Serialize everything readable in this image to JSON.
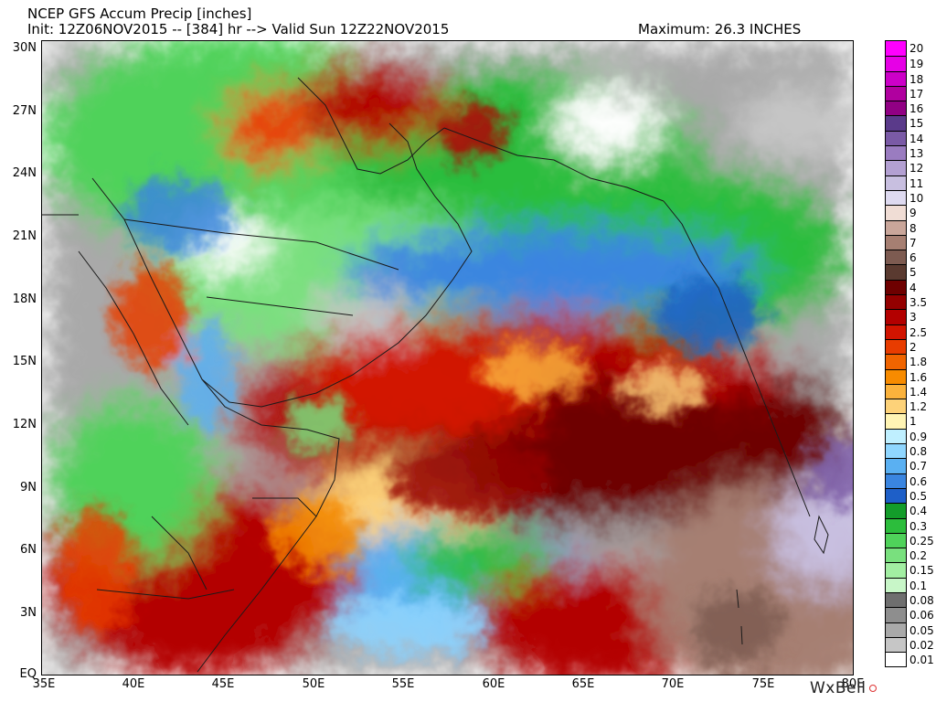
{
  "header": {
    "title": "NCEP GFS Accum Precip [inches]",
    "init_line": "Init: 12Z06NOV2015 -- [384] hr --> Valid Sun 12Z22NOV2015",
    "maximum": "Maximum: 26.3 INCHES"
  },
  "axes": {
    "lat_labels": [
      "30N",
      "27N",
      "24N",
      "21N",
      "18N",
      "15N",
      "12N",
      "9N",
      "6N",
      "3N",
      "EQ"
    ],
    "lon_labels": [
      "35E",
      "40E",
      "45E",
      "50E",
      "55E",
      "60E",
      "65E",
      "70E",
      "75E",
      "80E"
    ]
  },
  "colorbar": {
    "levels": [
      {
        "label": "20",
        "color": "#ff00ff"
      },
      {
        "label": "19",
        "color": "#e600e6"
      },
      {
        "label": "18",
        "color": "#cc00c8"
      },
      {
        "label": "17",
        "color": "#b0009f"
      },
      {
        "label": "16",
        "color": "#910084"
      },
      {
        "label": "15",
        "color": "#5a3a8a"
      },
      {
        "label": "14",
        "color": "#7a5aa6"
      },
      {
        "label": "13",
        "color": "#9a7cc0"
      },
      {
        "label": "12",
        "color": "#b3a0d2"
      },
      {
        "label": "11",
        "color": "#c8bfe0"
      },
      {
        "label": "10",
        "color": "#dedaf0"
      },
      {
        "label": "9",
        "color": "#f0ddd5"
      },
      {
        "label": "8",
        "color": "#c9a69a"
      },
      {
        "label": "7",
        "color": "#a67f72"
      },
      {
        "label": "6",
        "color": "#7d5b51"
      },
      {
        "label": "5",
        "color": "#5a3a30"
      },
      {
        "label": "4",
        "color": "#6e0000"
      },
      {
        "label": "3.5",
        "color": "#940000"
      },
      {
        "label": "3",
        "color": "#b30000"
      },
      {
        "label": "2.5",
        "color": "#d21400"
      },
      {
        "label": "2",
        "color": "#e83c00"
      },
      {
        "label": "1.8",
        "color": "#f06400"
      },
      {
        "label": "1.6",
        "color": "#f78b00"
      },
      {
        "label": "1.4",
        "color": "#fbb23c"
      },
      {
        "label": "1.2",
        "color": "#fdd279"
      },
      {
        "label": "1",
        "color": "#fff4b4"
      },
      {
        "label": "0.9",
        "color": "#bfefff"
      },
      {
        "label": "0.8",
        "color": "#8fd6ff"
      },
      {
        "label": "0.7",
        "color": "#5ab0f2"
      },
      {
        "label": "0.6",
        "color": "#3a85e0"
      },
      {
        "label": "0.5",
        "color": "#1e5fc8"
      },
      {
        "label": "0.4",
        "color": "#139c2a"
      },
      {
        "label": "0.3",
        "color": "#2cbd3c"
      },
      {
        "label": "0.25",
        "color": "#4fd25a"
      },
      {
        "label": "0.2",
        "color": "#79e07e"
      },
      {
        "label": "0.15",
        "color": "#a2eea2"
      },
      {
        "label": "0.1",
        "color": "#c8f6c8"
      },
      {
        "label": "0.08",
        "color": "#6f6f6f"
      },
      {
        "label": "0.06",
        "color": "#8e8e8e"
      },
      {
        "label": "0.05",
        "color": "#a9a9a9"
      },
      {
        "label": "0.02",
        "color": "#c6c6c6"
      },
      {
        "label": "0.01",
        "color": "#ffffff"
      }
    ]
  },
  "logo": {
    "text": "WxBell"
  }
}
